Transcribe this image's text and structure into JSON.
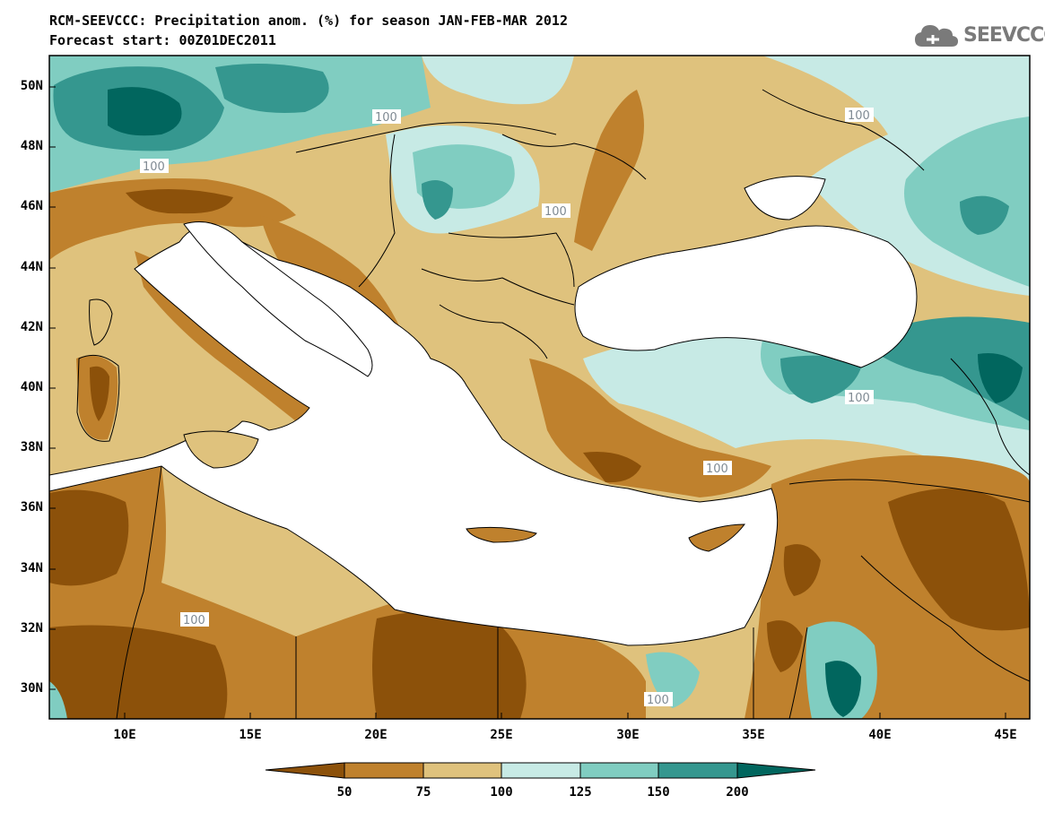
{
  "title_line1": "RCM-SEEVCCC: Precipitation anom. (%) for season JAN-FEB-MAR 2012",
  "title_line2": "Forecast start: 00Z01DEC2011",
  "logo_text": "SEEVCCC",
  "lat_labels": [
    "50N",
    "48N",
    "46N",
    "44N",
    "42N",
    "40N",
    "38N",
    "36N",
    "34N",
    "32N",
    "30N"
  ],
  "lon_labels": [
    "10E",
    "15E",
    "20E",
    "25E",
    "30E",
    "35E",
    "40E",
    "45E"
  ],
  "contour_label": "100",
  "colorbar": {
    "labels": [
      "50",
      "75",
      "100",
      "125",
      "150",
      "200"
    ],
    "colors": [
      "#8c510a",
      "#bf812d",
      "#dfc27d",
      "#c7eae5",
      "#80cdc1",
      "#35978f",
      "#01665e"
    ]
  },
  "colors": {
    "sea": "#ffffff",
    "border": "#000000",
    "contour": "#9aa7b0"
  }
}
